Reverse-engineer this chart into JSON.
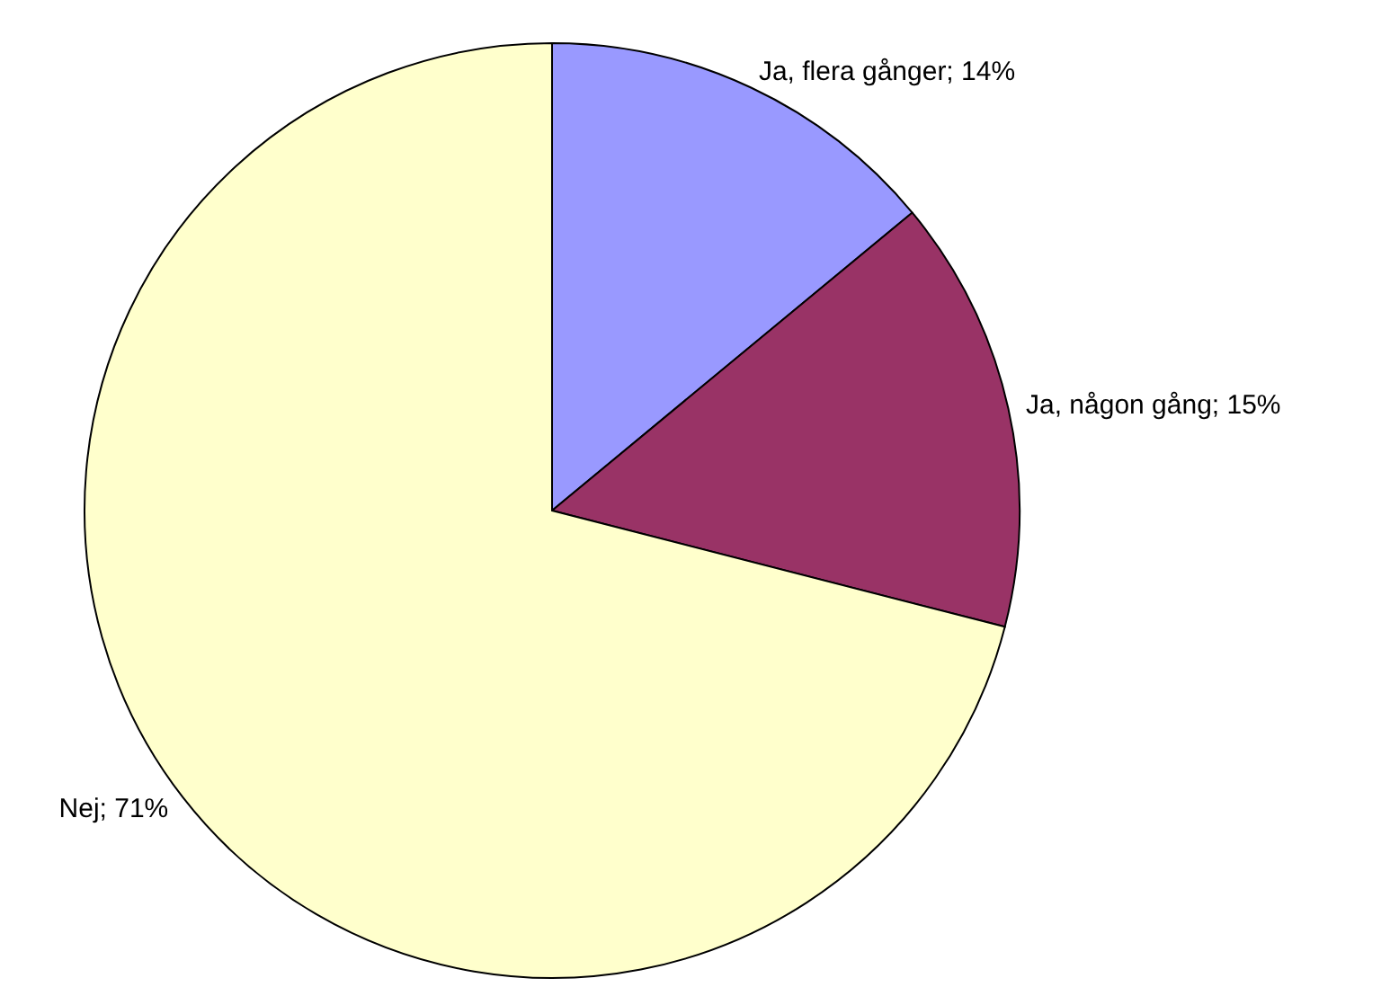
{
  "chart_data": {
    "type": "pie",
    "categories": [
      "Ja, flera gånger",
      "Ja, någon gång",
      "Nej"
    ],
    "values": [
      14,
      15,
      71
    ],
    "colors": [
      "#9999ff",
      "#993366",
      "#ffffcc"
    ],
    "value_labels": [
      "14%",
      "15%",
      "71%"
    ]
  }
}
